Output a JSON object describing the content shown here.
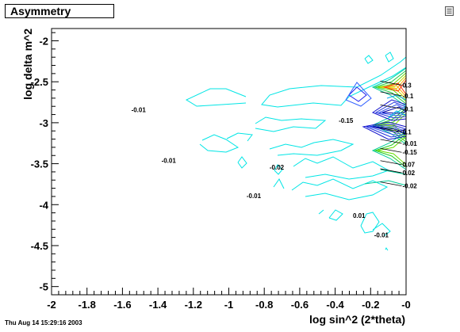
{
  "window": {
    "title": "Asymmetry",
    "timestamp": "Thu Aug 14 15:29:16 2003",
    "menu_icon": "menu-icon"
  },
  "chart_data": {
    "type": "contour",
    "title": "Asymmetry",
    "xlabel": "log sin^2 (2*theta)",
    "ylabel": "log delta m^2",
    "xlim": [
      -2,
      0
    ],
    "ylim": [
      -5.1,
      -1.85
    ],
    "x_ticks": [
      -2,
      -1.8,
      -1.6,
      -1.4,
      -1.2,
      -1,
      -0.8,
      -0.6,
      -0.4,
      -0.2,
      0
    ],
    "x_tick_labels": [
      "-2",
      "-1.8",
      "-1.6",
      "-1.4",
      "-1.2",
      "-1",
      "-0.8",
      "-0.6",
      "-0.4",
      "-0.2",
      "-0"
    ],
    "y_ticks": [
      -2,
      -2.5,
      -3,
      -3.5,
      -4,
      -4.5,
      -5
    ],
    "y_tick_labels": [
      "-2",
      "-2.5",
      "-3",
      "-3.5",
      "-4",
      "-4.5",
      "-5"
    ],
    "grid": false,
    "levels": [
      {
        "value": -0.01,
        "color": "#00e5e5"
      },
      {
        "value": 0.01,
        "color": "#00e5e5"
      },
      {
        "value": -0.02,
        "color": "#00cccc"
      },
      {
        "value": 0.02,
        "color": "#00cc99"
      },
      {
        "value": 0.07,
        "color": "#22cc22"
      },
      {
        "value": 0.1,
        "color": "#44dd00"
      },
      {
        "value": -0.1,
        "color": "#1010cc"
      },
      {
        "value": -0.15,
        "color": "#0000aa"
      },
      {
        "value": 0.3,
        "color": "#ff3300"
      }
    ],
    "annotations": [
      {
        "text": "0.3",
        "x": -0.02,
        "y": -2.57
      },
      {
        "text": "-0.1",
        "x": -0.02,
        "y": -2.7
      },
      {
        "text": "-0.1",
        "x": -0.02,
        "y": -2.86
      },
      {
        "text": "-0.01",
        "x": -1.55,
        "y": -2.87
      },
      {
        "text": "-0.15",
        "x": -0.38,
        "y": -3.0
      },
      {
        "text": "0.1",
        "x": -0.02,
        "y": -3.14
      },
      {
        "text": "-0.01",
        "x": -0.02,
        "y": -3.28
      },
      {
        "text": "-0.15",
        "x": -0.02,
        "y": -3.39
      },
      {
        "text": "-0.01",
        "x": -1.38,
        "y": -3.49
      },
      {
        "text": "0.07",
        "x": -0.02,
        "y": -3.54
      },
      {
        "text": "-0.02",
        "x": -0.77,
        "y": -3.57
      },
      {
        "text": "0.02",
        "x": -0.02,
        "y": -3.64
      },
      {
        "text": "-0.02",
        "x": -0.02,
        "y": -3.8
      },
      {
        "text": "-0.01",
        "x": -0.9,
        "y": -3.92
      },
      {
        "text": "0.01",
        "x": -0.3,
        "y": -4.16
      },
      {
        "text": "-0.01",
        "x": -0.18,
        "y": -4.4
      }
    ]
  }
}
